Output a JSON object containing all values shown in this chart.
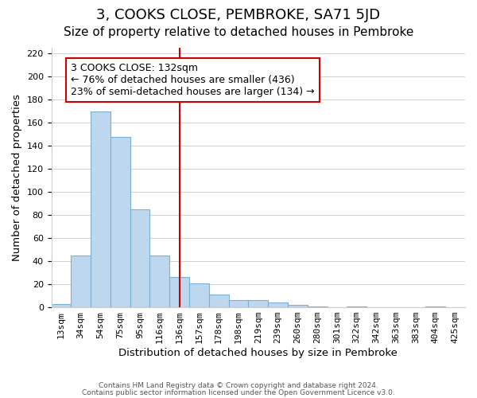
{
  "title": "3, COOKS CLOSE, PEMBROKE, SA71 5JD",
  "subtitle": "Size of property relative to detached houses in Pembroke",
  "xlabel": "Distribution of detached houses by size in Pembroke",
  "ylabel": "Number of detached properties",
  "bin_labels": [
    "13sqm",
    "34sqm",
    "54sqm",
    "75sqm",
    "95sqm",
    "116sqm",
    "136sqm",
    "157sqm",
    "178sqm",
    "198sqm",
    "219sqm",
    "239sqm",
    "260sqm",
    "280sqm",
    "301sqm",
    "322sqm",
    "342sqm",
    "363sqm",
    "383sqm",
    "404sqm",
    "425sqm"
  ],
  "bar_values": [
    3,
    45,
    170,
    148,
    85,
    45,
    26,
    21,
    11,
    6,
    6,
    4,
    2,
    1,
    0,
    1,
    0,
    0,
    0,
    1,
    0
  ],
  "bar_color": "#bdd7ee",
  "bar_edge_color": "#7ab0d4",
  "vline_x": 6,
  "vline_color": "#cc0000",
  "annotation_title": "3 COOKS CLOSE: 132sqm",
  "annotation_line1": "← 76% of detached houses are smaller (436)",
  "annotation_line2": "23% of semi-detached houses are larger (134) →",
  "annotation_box_color": "#ffffff",
  "annotation_box_edge": "#cc0000",
  "ylim": [
    0,
    225
  ],
  "yticks": [
    0,
    20,
    40,
    60,
    80,
    100,
    120,
    140,
    160,
    180,
    200,
    220
  ],
  "footer1": "Contains HM Land Registry data © Crown copyright and database right 2024.",
  "footer2": "Contains public sector information licensed under the Open Government Licence v3.0.",
  "background_color": "#ffffff",
  "grid_color": "#d0d0d0",
  "title_fontsize": 13,
  "subtitle_fontsize": 11,
  "axis_label_fontsize": 9.5,
  "tick_fontsize": 8,
  "annotation_fontsize": 9
}
